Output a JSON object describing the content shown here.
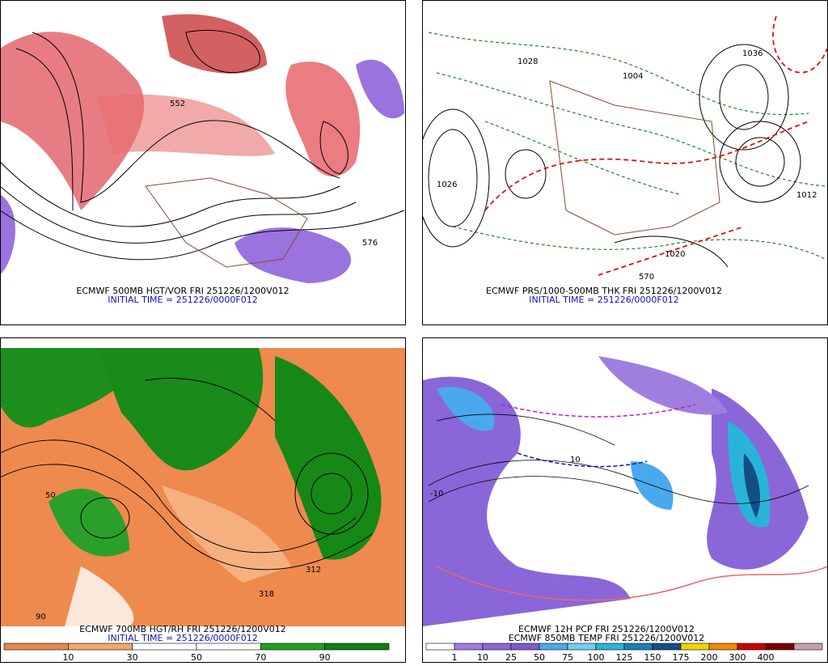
{
  "panels": [
    {
      "caption": "ECMWF 500MB HGT/VOR FRI 251226/1200V012",
      "initial": "INITIAL TIME = 251226/0000F012",
      "labels": [
        "552",
        "576"
      ]
    },
    {
      "caption": "ECMWF PRS/1000-500MB THK FRI 251226/1200V012",
      "initial": "INITIAL TIME = 251226/0000F012",
      "labels": [
        "1026",
        "1004",
        "1020",
        "1036",
        "1012",
        "570",
        "1028"
      ]
    },
    {
      "caption": "ECMWF 700MB HGT/RH FRI 251226/1200V012",
      "initial": "INITIAL TIME = 251226/0000F012",
      "labels": [
        "312",
        "318",
        "50",
        "90"
      ],
      "colorbar": {
        "colors": [
          "#e8874c",
          "#f2a66a",
          "#ffffff",
          "#ffffff",
          "#22a022",
          "#0f7f0f"
        ],
        "labels": [
          "10",
          "30",
          "50",
          "70",
          "90"
        ]
      }
    },
    {
      "caption": "ECMWF 12H PCP FRI 251226/1200V012",
      "initial": "ECMWF 850MB TEMP FRI 251226/1200V012",
      "labels": [
        "10",
        "-10"
      ],
      "colorbar": {
        "colors": [
          "#ffffff",
          "#a07ee0",
          "#8a66d8",
          "#7a5ccf",
          "#4aa8ec",
          "#6fd0f0",
          "#2ab3d8",
          "#1a7fb8",
          "#134f86",
          "#f0d400",
          "#ee8a00",
          "#cc0000",
          "#7a0000",
          "#c4a0a8"
        ],
        "labels": [
          "1",
          "10",
          "25",
          "50",
          "75",
          "100",
          "125",
          "150",
          "175",
          "200",
          "300",
          "400"
        ]
      }
    }
  ]
}
